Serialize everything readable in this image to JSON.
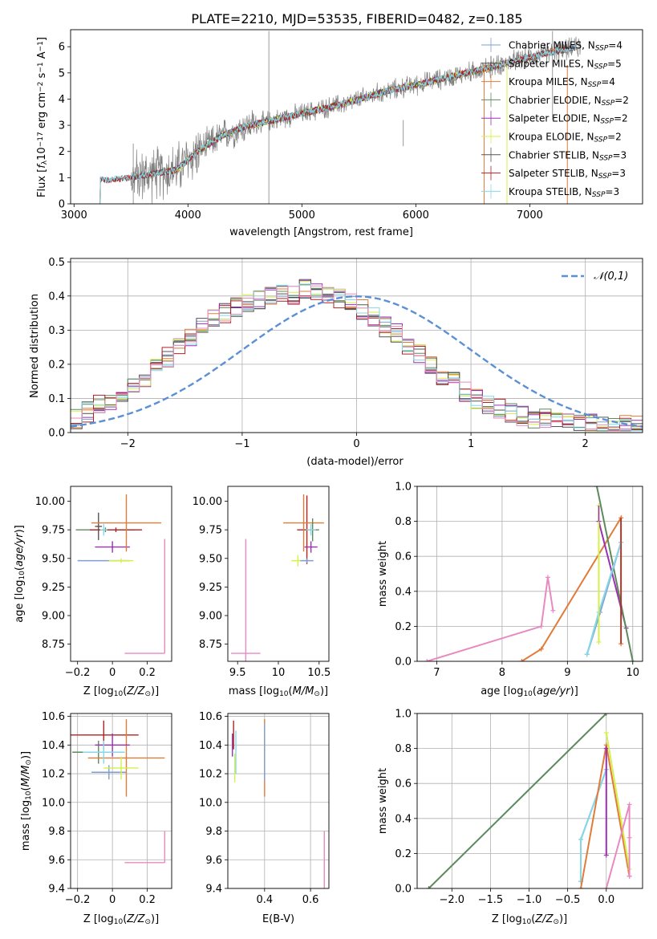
{
  "title": "PLATE=2210, MJD=53535, FIBERID=0482, z=0.185",
  "colors": {
    "chabrier_miles": "#7f9fd0",
    "salpeter_miles": "#4c4c4c",
    "kroupa_miles": "#e07b39",
    "chabrier_elodie": "#5d8a5d",
    "salpeter_elodie": "#9b30b5",
    "kroupa_elodie": "#d4f04a",
    "chabrier_stelib": "#555555",
    "salpeter_stelib": "#b22222",
    "kroupa_stelib": "#86d7e8",
    "pink": "#e88ac0",
    "normal": "#5b8fd6",
    "data": "#808080"
  },
  "chart_data": [
    {
      "id": "spectrum",
      "type": "line",
      "title": "PLATE=2210, MJD=53535, FIBERID=0482, z=0.185",
      "xlabel": "wavelength [Angstrom, rest frame]",
      "ylabel": "Flux [f_λ 10^-17 erg cm^-2 s^-1 A^-1]",
      "ylabel_parts": {
        "a": "Flux [",
        "b": "f",
        "c": "λ",
        "d": "10",
        "e": "−17",
        "f": " erg cm",
        "g": "−2",
        "h": " s",
        "i": "−1",
        "j": " A",
        "k": "−1",
        "l": "]"
      },
      "xlim": [
        2970,
        7990
      ],
      "ylim": [
        0,
        6.65
      ],
      "xticks": [
        3000,
        4000,
        5000,
        6000,
        7000
      ],
      "yticks": [
        0,
        1,
        2,
        3,
        4,
        5,
        6
      ],
      "continuum": {
        "x": [
          3220,
          3500,
          3700,
          3900,
          4100,
          4300,
          4500,
          4800,
          5100,
          5400,
          5700,
          6000,
          6300,
          6600,
          6900,
          7200,
          7450
        ],
        "y": [
          0.9,
          1.0,
          1.15,
          1.3,
          2.05,
          2.6,
          2.95,
          3.25,
          3.55,
          3.85,
          4.25,
          4.55,
          4.85,
          5.15,
          5.5,
          5.8,
          6.0
        ]
      },
      "legend": [
        {
          "name": "Chabrier MILES",
          "nssp": "4"
        },
        {
          "name": "Salpeter MILES",
          "nssp": "5"
        },
        {
          "name": "Kroupa MILES",
          "nssp": "4"
        },
        {
          "name": "Chabrier ELODIE",
          "nssp": "2"
        },
        {
          "name": "Salpeter ELODIE",
          "nssp": "2"
        },
        {
          "name": "Kroupa ELODIE",
          "nssp": "2"
        },
        {
          "name": "Chabrier STELIB",
          "nssp": "3"
        },
        {
          "name": "Salpeter STELIB",
          "nssp": "3"
        },
        {
          "name": "Kroupa STELIB",
          "nssp": "3"
        }
      ],
      "nssp_label": "SSP"
    },
    {
      "id": "residuals",
      "type": "bar",
      "xlabel": "(data-model)/error",
      "ylabel": "Normed distribution",
      "xlim": [
        -2.5,
        2.5
      ],
      "ylim": [
        0,
        0.51
      ],
      "xticks": [
        -2,
        -1,
        0,
        1,
        2
      ],
      "yticks": [
        0.0,
        0.1,
        0.2,
        0.3,
        0.4,
        0.5
      ],
      "bins": 50,
      "legend_label": "N(0,1)",
      "hist_base": [
        0.04,
        0.06,
        0.08,
        0.09,
        0.11,
        0.14,
        0.16,
        0.19,
        0.22,
        0.25,
        0.28,
        0.31,
        0.33,
        0.35,
        0.37,
        0.38,
        0.39,
        0.4,
        0.41,
        0.4,
        0.42,
        0.41,
        0.4,
        0.39,
        0.38,
        0.36,
        0.34,
        0.31,
        0.29,
        0.26,
        0.23,
        0.2,
        0.17,
        0.15,
        0.12,
        0.1,
        0.08,
        0.07,
        0.06,
        0.05,
        0.04,
        0.04,
        0.03,
        0.03,
        0.03,
        0.03,
        0.02,
        0.02,
        0.02,
        0.02
      ]
    },
    {
      "id": "age_Z",
      "type": "scatter",
      "xlabel": "Z [log10(Z/Z⊙)]",
      "ylabel": "age [log10(age/yr)]",
      "xlim": [
        -0.24,
        0.34
      ],
      "ylim": [
        8.6,
        10.13
      ],
      "xticks": [
        -0.2,
        0.0,
        0.2
      ],
      "yticks": [
        8.75,
        9.0,
        9.25,
        9.5,
        9.75,
        10.0
      ],
      "points": [
        {
          "x": -0.08,
          "y": 9.78,
          "xerr": 0.02,
          "yerr": 0.12,
          "c": "chabrier_stelib"
        },
        {
          "x": -0.04,
          "y": 9.75,
          "xerr": 0.17,
          "yerr": 0.02,
          "c": "chabrier_elodie"
        },
        {
          "x": 0.02,
          "y": 9.75,
          "xerr": 0.15,
          "yerr": 0.02,
          "c": "salpeter_stelib"
        },
        {
          "x": 0.0,
          "y": 9.6,
          "xerr": 0.1,
          "yerr": 0.05,
          "c": "salpeter_elodie"
        },
        {
          "x": 0.08,
          "y": 9.81,
          "xerr": 0.2,
          "yerr": 0.25,
          "c": "kroupa_miles"
        },
        {
          "x": -0.05,
          "y": 9.48,
          "xerr": 0.15,
          "yerr": 0.0,
          "c": "chabrier_miles"
        },
        {
          "x": 0.05,
          "y": 9.48,
          "xerr": 0.07,
          "yerr": 0.02,
          "c": "kroupa_elodie"
        },
        {
          "x": -0.05,
          "y": 9.75,
          "xerr": 0.02,
          "yerr": 0.05,
          "c": "kroupa_stelib"
        },
        {
          "x": 0.3,
          "y": 8.67,
          "xerr": 0.23,
          "yerr": 1.0,
          "c": "pink",
          "halfx": true
        }
      ]
    },
    {
      "id": "age_mass",
      "type": "scatter",
      "xlabel": "mass [log10(M/M⊙)]",
      "ylabel": "",
      "xlim": [
        9.38,
        10.62
      ],
      "ylim": [
        8.6,
        10.13
      ],
      "xticks": [
        9.5,
        10.0,
        10.5
      ],
      "yticks": [
        8.75,
        9.0,
        9.25,
        9.5,
        9.75,
        10.0
      ],
      "points": [
        {
          "x": 10.35,
          "y": 9.75,
          "xerr": 0.12,
          "yerr": 0.3,
          "c": "salpeter_stelib"
        },
        {
          "x": 10.31,
          "y": 9.81,
          "xerr": 0.25,
          "yerr": 0.25,
          "c": "kroupa_miles"
        },
        {
          "x": 10.42,
          "y": 9.75,
          "xerr": 0.08,
          "yerr": 0.1,
          "c": "chabrier_elodie"
        },
        {
          "x": 10.4,
          "y": 9.6,
          "xerr": 0.08,
          "yerr": 0.05,
          "c": "salpeter_elodie"
        },
        {
          "x": 10.24,
          "y": 9.48,
          "xerr": 0.08,
          "yerr": 0.05,
          "c": "kroupa_elodie"
        },
        {
          "x": 10.35,
          "y": 9.48,
          "xerr": 0.08,
          "yerr": 0.02,
          "c": "chabrier_miles"
        },
        {
          "x": 10.4,
          "y": 9.75,
          "xerr": 0.06,
          "yerr": 0.05,
          "c": "kroupa_stelib"
        },
        {
          "x": 9.6,
          "y": 8.67,
          "xerr": 0.18,
          "yerr": 1.0,
          "c": "pink"
        }
      ]
    },
    {
      "id": "weight_age",
      "type": "line",
      "xlabel": "age [log10(age/yr)]",
      "ylabel": "mass weight",
      "xlim": [
        6.7,
        10.15
      ],
      "ylim": [
        0,
        1.0
      ],
      "xticks": [
        7,
        8,
        9,
        10
      ],
      "yticks": [
        0.0,
        0.2,
        0.4,
        0.6,
        0.8,
        1.0
      ],
      "series": [
        {
          "c": "pink",
          "x": [
            6.85,
            8.6,
            8.7,
            8.78
          ],
          "y": [
            0.0,
            0.2,
            0.48,
            0.29
          ],
          "err": [
            0.01,
            0.0,
            0.02,
            0.02
          ]
        },
        {
          "c": "kroupa_miles",
          "x": [
            8.3,
            8.6,
            9.82,
            9.82
          ],
          "y": [
            0.0,
            0.07,
            0.82,
            0.1
          ],
          "err": [
            0.0,
            0.02,
            0.02,
            0.02
          ]
        },
        {
          "c": "kroupa_elodie",
          "x": [
            9.48,
            9.48
          ],
          "y": [
            0.89,
            0.11
          ],
          "err": [
            0.0,
            0.0
          ]
        },
        {
          "c": "salpeter_elodie",
          "x": [
            9.48,
            9.9
          ],
          "y": [
            0.8,
            0.19
          ],
          "err": [
            0.0,
            0.02
          ]
        },
        {
          "c": "chabrier_elodie",
          "x": [
            9.45,
            10.0
          ],
          "y": [
            1.0,
            0.0
          ],
          "err": [
            0.0,
            0.0
          ]
        },
        {
          "c": "chabrier_miles",
          "x": [
            9.3,
            9.5,
            9.82
          ],
          "y": [
            0.04,
            0.28,
            0.68
          ],
          "err": [
            0.02,
            0.02,
            0.02
          ]
        },
        {
          "c": "kroupa_stelib",
          "x": [
            9.3,
            9.48,
            9.82
          ],
          "y": [
            0.04,
            0.28,
            0.68
          ],
          "err": [
            0.02,
            0.02,
            0.02
          ]
        }
      ],
      "vlines": [
        {
          "c": "salpeter_stelib",
          "x": 9.82,
          "y0": 0.1,
          "y1": 0.82
        },
        {
          "c": "kroupa_elodie",
          "x": 9.48,
          "y0": 0.11,
          "y1": 0.89
        },
        {
          "c": "salpeter_elodie",
          "x": 9.48,
          "y0": 0.8,
          "y1": 0.89
        }
      ]
    },
    {
      "id": "mass_Z",
      "type": "scatter",
      "xlabel": "Z [log10(Z/Z⊙)]",
      "ylabel": "mass [log10(M/M⊙)]",
      "xlim": [
        -0.24,
        0.34
      ],
      "ylim": [
        9.4,
        10.62
      ],
      "xticks": [
        -0.2,
        0.0,
        0.2
      ],
      "yticks": [
        9.4,
        9.6,
        9.8,
        10.0,
        10.2,
        10.4,
        10.6
      ],
      "points": [
        {
          "x": -0.05,
          "y": 10.47,
          "xerr": 0.2,
          "yerr": 0.1,
          "c": "salpeter_stelib"
        },
        {
          "x": -0.08,
          "y": 10.35,
          "xerr": 0.15,
          "yerr": 0.08,
          "c": "chabrier_elodie"
        },
        {
          "x": 0.08,
          "y": 10.31,
          "xerr": 0.22,
          "yerr": 0.27,
          "c": "kroupa_miles"
        },
        {
          "x": 0.0,
          "y": 10.4,
          "xerr": 0.1,
          "yerr": 0.08,
          "c": "salpeter_elodie"
        },
        {
          "x": -0.05,
          "y": 10.35,
          "xerr": 0.12,
          "yerr": 0.08,
          "c": "kroupa_stelib"
        },
        {
          "x": -0.02,
          "y": 10.21,
          "xerr": 0.1,
          "yerr": 0.05,
          "c": "chabrier_miles"
        },
        {
          "x": 0.05,
          "y": 10.24,
          "xerr": 0.1,
          "yerr": 0.08,
          "c": "kroupa_elodie"
        },
        {
          "x": 0.3,
          "y": 9.58,
          "xerr": 0.23,
          "yerr": 0.22,
          "c": "pink",
          "halfx": true
        }
      ]
    },
    {
      "id": "mass_ebv",
      "type": "scatter",
      "xlabel": "E(B-V)",
      "ylabel": "",
      "xlim": [
        0.24,
        0.68
      ],
      "ylim": [
        9.4,
        10.62
      ],
      "xticks": [
        0.4,
        0.6
      ],
      "yticks": [
        9.4,
        9.6,
        9.8,
        10.0,
        10.2,
        10.4,
        10.6
      ],
      "points": [
        {
          "x": 0.265,
          "y": 10.47,
          "xerr": 0.0,
          "yerr": 0.1,
          "c": "salpeter_stelib"
        },
        {
          "x": 0.26,
          "y": 10.4,
          "xerr": 0.0,
          "yerr": 0.08,
          "c": "salpeter_elodie"
        },
        {
          "x": 0.27,
          "y": 10.24,
          "xerr": 0.0,
          "yerr": 0.1,
          "c": "kroupa_elodie"
        },
        {
          "x": 0.275,
          "y": 10.35,
          "xerr": 0.0,
          "yerr": 0.15,
          "c": "kroupa_stelib"
        },
        {
          "x": 0.4,
          "y": 10.31,
          "xerr": 0.0,
          "yerr": 0.27,
          "c": "kroupa_miles"
        },
        {
          "x": 0.4,
          "y": 10.35,
          "xerr": 0.0,
          "yerr": 0.2,
          "c": "chabrier_miles"
        },
        {
          "x": 0.66,
          "y": 9.58,
          "xerr": 0.0,
          "yerr": 0.22,
          "c": "pink"
        }
      ]
    },
    {
      "id": "weight_Z",
      "type": "line",
      "xlabel": "Z [log10(Z/Z⊙)]",
      "ylabel": "mass weight",
      "xlim": [
        -2.45,
        0.47
      ],
      "ylim": [
        0,
        1.0
      ],
      "xticks": [
        -2.0,
        -1.5,
        -1.0,
        -0.5,
        0.0
      ],
      "yticks": [
        0.0,
        0.2,
        0.4,
        0.6,
        0.8,
        1.0
      ],
      "series": [
        {
          "c": "chabrier_elodie",
          "x": [
            -2.3,
            0.0
          ],
          "y": [
            0.0,
            1.0
          ],
          "err": [
            0.0,
            0.0
          ]
        },
        {
          "c": "chabrier_miles",
          "x": [
            -0.33,
            -0.33,
            0.0
          ],
          "y": [
            0.04,
            0.28,
            0.68
          ],
          "err": [
            0.01,
            0.01,
            0.01
          ]
        },
        {
          "c": "kroupa_stelib",
          "x": [
            -0.33,
            -0.33,
            0.0
          ],
          "y": [
            0.04,
            0.28,
            0.68
          ],
          "err": [
            0.01,
            0.01,
            0.01
          ]
        },
        {
          "c": "kroupa_miles",
          "x": [
            -0.33,
            0.0,
            0.3
          ],
          "y": [
            0.0,
            0.82,
            0.07
          ],
          "err": [
            0.0,
            0.02,
            0.02
          ]
        },
        {
          "c": "salpeter_elodie",
          "x": [
            0.0,
            0.0
          ],
          "y": [
            0.19,
            0.8
          ],
          "err": [
            0.02,
            0.02
          ]
        },
        {
          "c": "kroupa_elodie",
          "x": [
            0.0,
            0.3
          ],
          "y": [
            0.89,
            0.11
          ],
          "err": [
            0.02,
            0.02
          ]
        },
        {
          "c": "pink",
          "x": [
            0.0,
            0.3,
            0.3,
            0.3
          ],
          "y": [
            0.0,
            0.48,
            0.29,
            0.07
          ],
          "err": [
            0.0,
            0.02,
            0.02,
            0.02
          ]
        }
      ]
    }
  ]
}
